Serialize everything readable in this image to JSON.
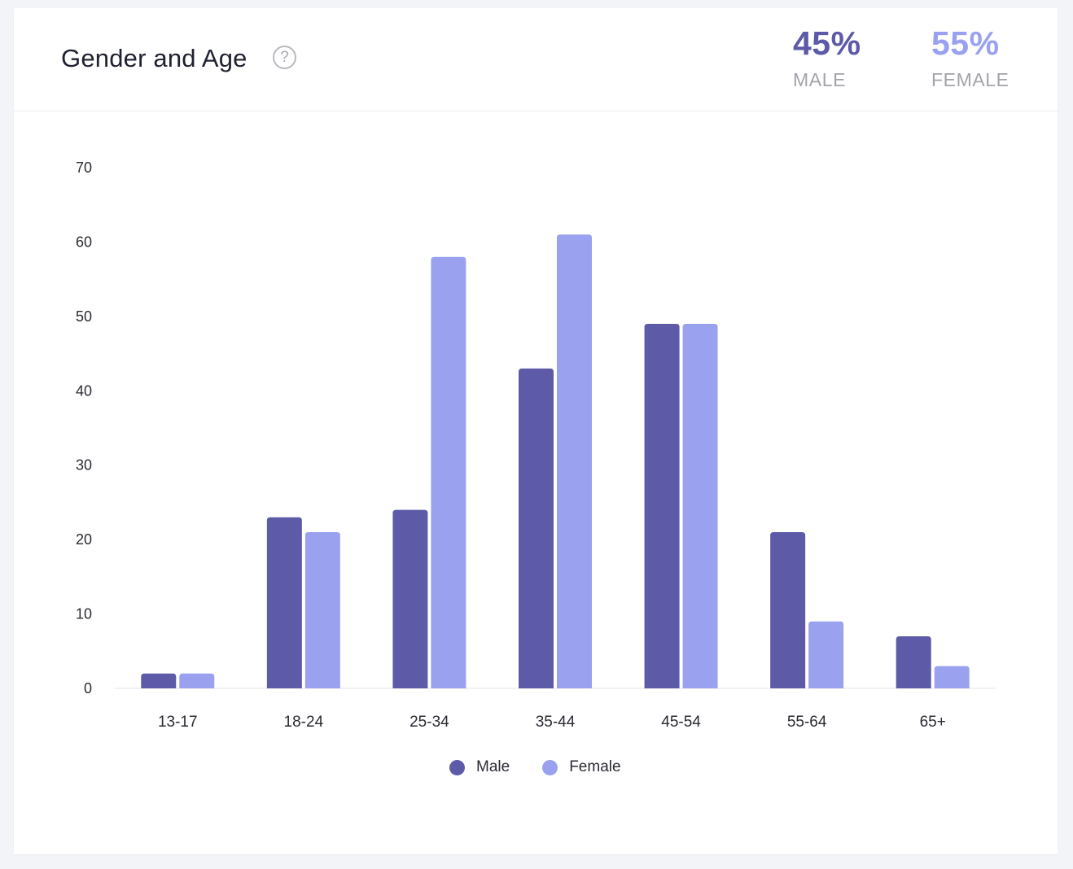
{
  "header": {
    "title": "Gender and Age",
    "help_icon": "question-circle-icon",
    "stats": [
      {
        "value": "45%",
        "label": "MALE",
        "color": "#5d5aa8"
      },
      {
        "value": "55%",
        "label": "FEMALE",
        "color": "#9aa2f0"
      }
    ]
  },
  "chart_data": {
    "type": "bar",
    "categories": [
      "13-17",
      "18-24",
      "25-34",
      "35-44",
      "45-54",
      "55-64",
      "65+"
    ],
    "series": [
      {
        "name": "Male",
        "color": "#5d5aa8",
        "values": [
          2,
          23,
          24,
          43,
          49,
          21,
          7
        ]
      },
      {
        "name": "Female",
        "color": "#9aa2f0",
        "values": [
          2,
          21,
          58,
          61,
          49,
          9,
          3
        ]
      }
    ],
    "yticks": [
      0,
      10,
      20,
      30,
      40,
      50,
      60,
      70
    ],
    "ylim": [
      0,
      70
    ],
    "legend_position": "bottom-center"
  }
}
